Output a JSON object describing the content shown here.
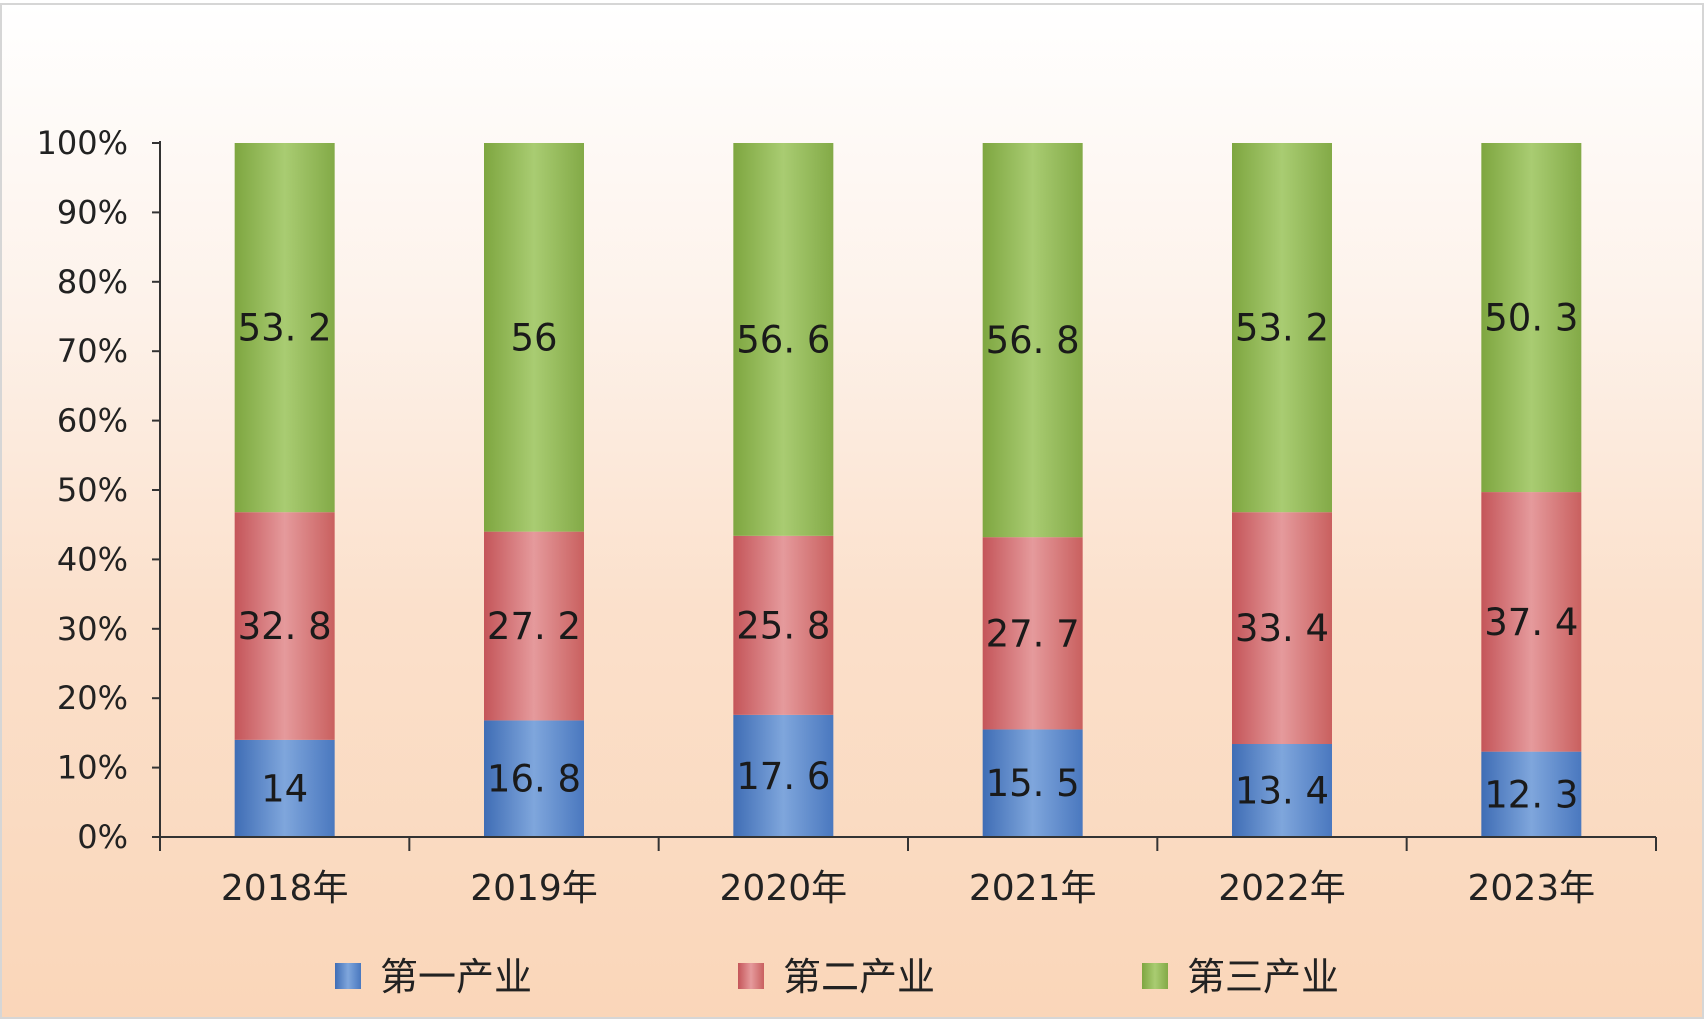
{
  "chart_data": {
    "type": "bar",
    "stacked": true,
    "normalized": true,
    "title": "",
    "xlabel": "",
    "ylabel": "",
    "ylim": [
      0,
      100
    ],
    "y_ticks": [
      "0%",
      "10%",
      "20%",
      "30%",
      "40%",
      "50%",
      "60%",
      "70%",
      "80%",
      "90%",
      "100%"
    ],
    "categories": [
      "2018年",
      "2019年",
      "2020年",
      "2021年",
      "2022年",
      "2023年"
    ],
    "series": [
      {
        "name": "第一产业",
        "values": [
          14,
          16.8,
          17.6,
          15.5,
          13.4,
          12.3
        ],
        "labels": [
          "14",
          "16. 8",
          "17. 6",
          "15. 5",
          "13. 4",
          "12. 3"
        ],
        "color": "#5b86c9"
      },
      {
        "name": "第二产业",
        "values": [
          32.8,
          27.2,
          25.8,
          27.7,
          33.4,
          37.4
        ],
        "labels": [
          "32. 8",
          "27. 2",
          "25. 8",
          "27. 7",
          "33. 4",
          "37. 4"
        ],
        "color": "#cf6a6e"
      },
      {
        "name": "第三产业",
        "values": [
          53.2,
          56,
          56.6,
          56.8,
          53.2,
          50.3
        ],
        "labels": [
          "53. 2",
          "56",
          "56. 6",
          "56. 8",
          "53. 2",
          "50. 3"
        ],
        "color": "#8fb555"
      }
    ],
    "legend_position": "bottom",
    "grid": false,
    "background_colors": [
      "#ffffff",
      "#fbd9bf"
    ]
  }
}
